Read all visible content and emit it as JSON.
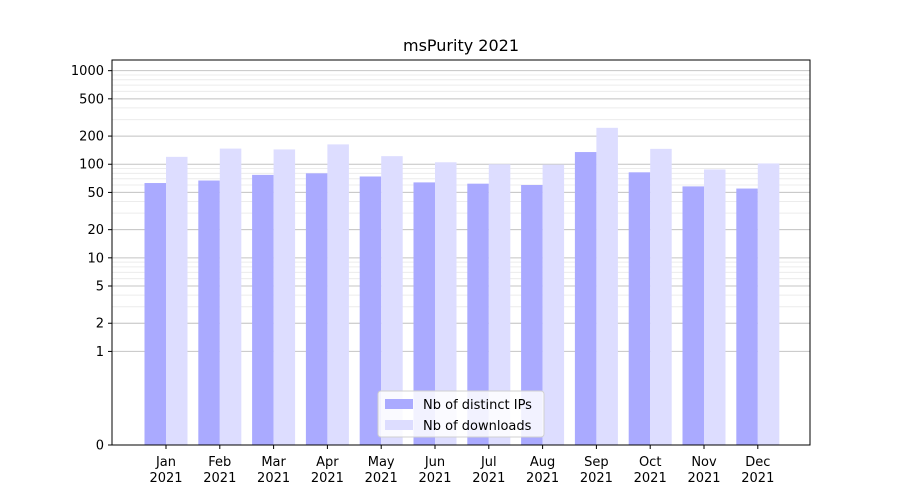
{
  "chart_data": {
    "type": "bar",
    "title": "msPurity 2021",
    "xlabel": "",
    "ylabel": "",
    "yscale": "symlog",
    "ylim": [
      0,
      1300
    ],
    "yticks": [
      {
        "value": 0,
        "label": "0"
      },
      {
        "value": 1,
        "label": "1"
      },
      {
        "value": 2,
        "label": "2"
      },
      {
        "value": 5,
        "label": "5"
      },
      {
        "value": 10,
        "label": "10"
      },
      {
        "value": 20,
        "label": "20"
      },
      {
        "value": 50,
        "label": "50"
      },
      {
        "value": 100,
        "label": "100"
      },
      {
        "value": 200,
        "label": "200"
      },
      {
        "value": 500,
        "label": "500"
      },
      {
        "value": 1000,
        "label": "1000"
      }
    ],
    "categories": [
      {
        "month": "Jan",
        "year": "2021"
      },
      {
        "month": "Feb",
        "year": "2021"
      },
      {
        "month": "Mar",
        "year": "2021"
      },
      {
        "month": "Apr",
        "year": "2021"
      },
      {
        "month": "May",
        "year": "2021"
      },
      {
        "month": "Jun",
        "year": "2021"
      },
      {
        "month": "Jul",
        "year": "2021"
      },
      {
        "month": "Aug",
        "year": "2021"
      },
      {
        "month": "Sep",
        "year": "2021"
      },
      {
        "month": "Oct",
        "year": "2021"
      },
      {
        "month": "Nov",
        "year": "2021"
      },
      {
        "month": "Dec",
        "year": "2021"
      }
    ],
    "series": [
      {
        "name": "Nb of distinct IPs",
        "color": "#aaaaff",
        "values": [
          63,
          67,
          77,
          80,
          74,
          64,
          62,
          60,
          135,
          82,
          58,
          55
        ]
      },
      {
        "name": "Nb of downloads",
        "color": "#ddddff",
        "values": [
          120,
          147,
          144,
          163,
          122,
          105,
          100,
          99,
          245,
          146,
          88,
          102
        ]
      }
    ],
    "grid": {
      "major": true,
      "minor": true,
      "axis": "y"
    },
    "legend_position": "lower-center"
  }
}
